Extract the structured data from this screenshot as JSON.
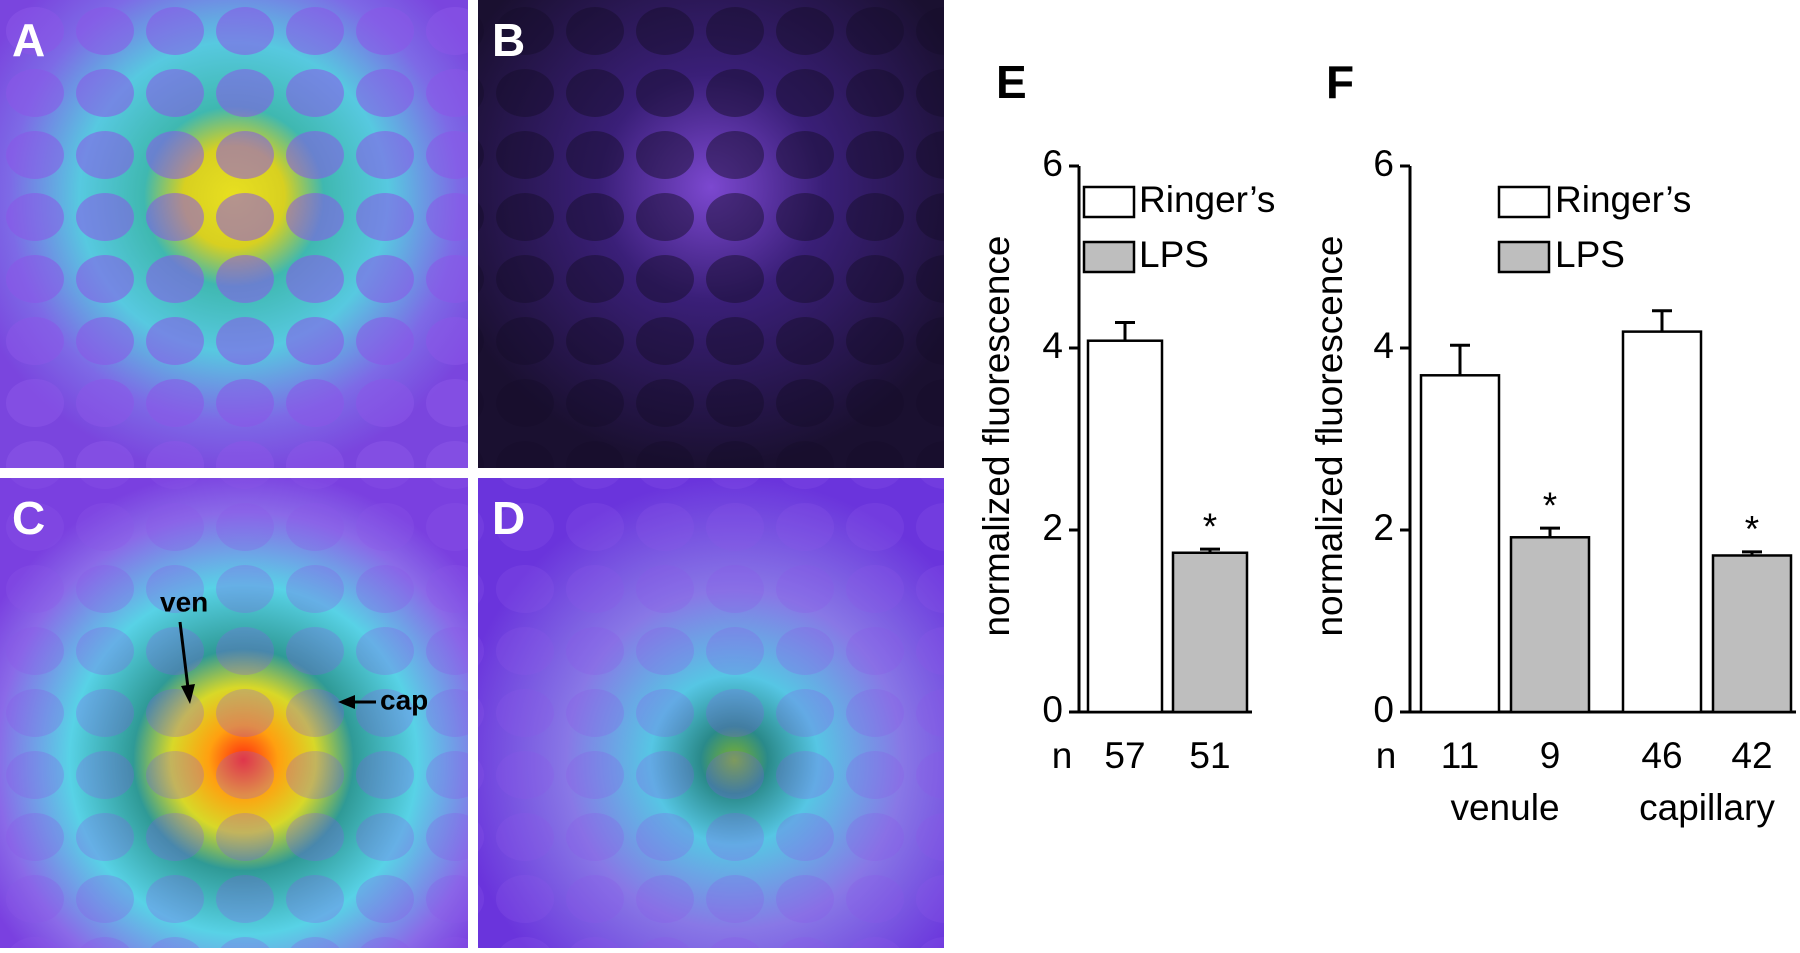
{
  "panels": [
    {
      "label": "A"
    },
    {
      "label": "B"
    },
    {
      "label": "C",
      "annotations": [
        "ven",
        "cap"
      ]
    },
    {
      "label": "D"
    }
  ],
  "chart_data": [
    {
      "type": "bar",
      "title": "E",
      "ylabel": "normalized fluorescence",
      "ylim": [
        0,
        6
      ],
      "yticks": [
        0,
        2,
        4,
        6
      ],
      "n_label": "n",
      "categories": [
        null
      ],
      "series": [
        {
          "name": "Ringer’s",
          "color": "#ffffff",
          "values": [
            4.08
          ],
          "errors": [
            0.2
          ],
          "n": [
            57
          ]
        },
        {
          "name": "LPS",
          "color": "#bebebe",
          "values": [
            1.75
          ],
          "errors": [
            0.04
          ],
          "n": [
            51
          ],
          "annotations": [
            "*"
          ]
        }
      ]
    },
    {
      "type": "bar",
      "title": "F",
      "ylabel": "normalized fluorescence",
      "ylim": [
        0,
        6
      ],
      "yticks": [
        0,
        2,
        4,
        6
      ],
      "n_label": "n",
      "categories": [
        "venule",
        "capillary"
      ],
      "series": [
        {
          "name": "Ringer’s",
          "color": "#ffffff",
          "values": [
            3.7,
            4.18
          ],
          "errors": [
            0.33,
            0.23
          ],
          "n": [
            11,
            46
          ]
        },
        {
          "name": "LPS",
          "color": "#bebebe",
          "values": [
            1.92,
            1.72
          ],
          "errors": [
            0.1,
            0.04
          ],
          "n": [
            9,
            42
          ],
          "annotations": [
            "*",
            "*"
          ]
        }
      ]
    }
  ]
}
